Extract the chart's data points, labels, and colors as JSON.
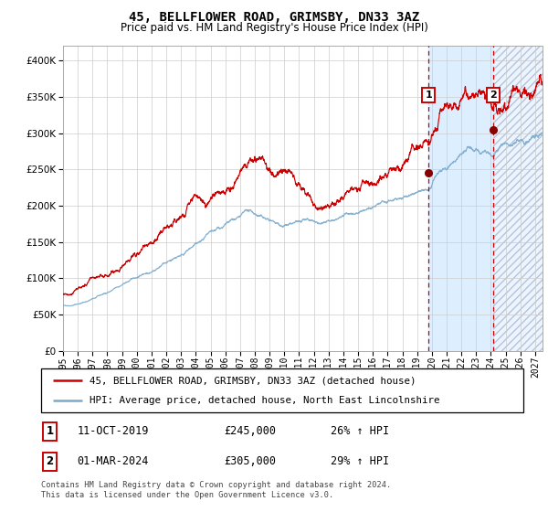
{
  "title1": "45, BELLFLOWER ROAD, GRIMSBY, DN33 3AZ",
  "title2": "Price paid vs. HM Land Registry's House Price Index (HPI)",
  "legend1": "45, BELLFLOWER ROAD, GRIMSBY, DN33 3AZ (detached house)",
  "legend2": "HPI: Average price, detached house, North East Lincolnshire",
  "annotation1_date": "11-OCT-2019",
  "annotation1_price": "£245,000",
  "annotation1_hpi": "26% ↑ HPI",
  "annotation2_date": "01-MAR-2024",
  "annotation2_price": "£305,000",
  "annotation2_hpi": "29% ↑ HPI",
  "footer": "Contains HM Land Registry data © Crown copyright and database right 2024.\nThis data is licensed under the Open Government Licence v3.0.",
  "red_line_color": "#cc0000",
  "blue_line_color": "#7aaacc",
  "dot_color": "#880000",
  "vline_color": "#cc0000",
  "bg_highlight_color": "#ddeeff",
  "grid_color": "#cccccc",
  "ylim": [
    0,
    420000
  ],
  "yticks": [
    0,
    50000,
    100000,
    150000,
    200000,
    250000,
    300000,
    350000,
    400000
  ],
  "marker1_x": 2019.79,
  "marker1_y": 245000,
  "marker2_x": 2024.17,
  "marker2_y": 305000,
  "vline1_x": 2019.79,
  "vline2_x": 2024.17,
  "highlight_start": 2019.79,
  "highlight_end": 2024.17,
  "hatch_end": 2027.5,
  "xmin": 1995.0,
  "xmax": 2027.5,
  "xtick_years": [
    1995,
    1996,
    1997,
    1998,
    1999,
    2000,
    2001,
    2002,
    2003,
    2004,
    2005,
    2006,
    2007,
    2008,
    2009,
    2010,
    2011,
    2012,
    2013,
    2014,
    2015,
    2016,
    2017,
    2018,
    2019,
    2020,
    2021,
    2022,
    2023,
    2024,
    2025,
    2026,
    2027
  ]
}
